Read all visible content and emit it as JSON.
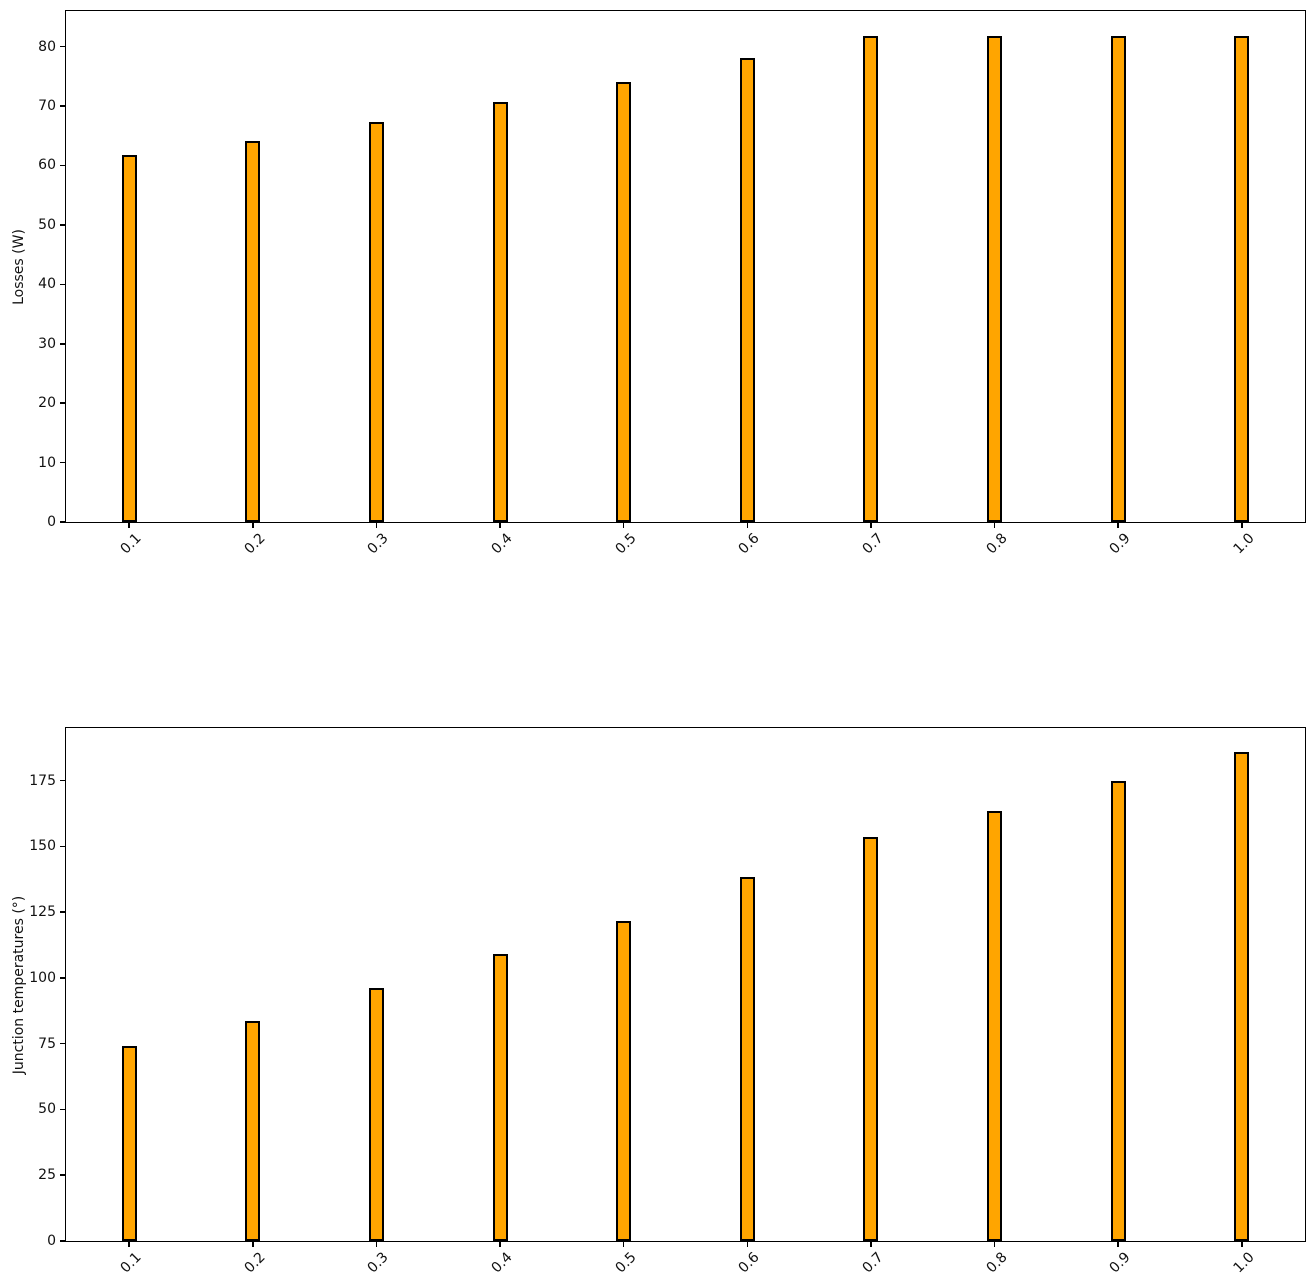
{
  "figure": {
    "background_color": "#ffffff",
    "bar_fill_color": "#FFA500",
    "bar_edge_color": "#000000",
    "axis_color": "#000000"
  },
  "chart_data": [
    {
      "type": "bar",
      "title": "",
      "xlabel": "",
      "ylabel": "Losses (W)",
      "categories": [
        "0.1",
        "0.2",
        "0.3",
        "0.4",
        "0.5",
        "0.6",
        "0.7",
        "0.8",
        "0.9",
        "1.0"
      ],
      "values": [
        61.7,
        64.2,
        67.3,
        70.7,
        74.1,
        78.1,
        81.8,
        81.8,
        81.8,
        81.8
      ],
      "yticks": [
        0,
        10,
        20,
        30,
        40,
        50,
        60,
        70,
        80
      ],
      "ylim": [
        0,
        86
      ],
      "grid": false,
      "legend": null,
      "x_tick_rotation_deg": 45,
      "bar_color": "#FFA500",
      "bar_edge_color": "#000000"
    },
    {
      "type": "bar",
      "title": "",
      "xlabel": "",
      "ylabel": "Junction temperatures (°)",
      "categories": [
        "0.1",
        "0.2",
        "0.3",
        "0.4",
        "0.5",
        "0.6",
        "0.7",
        "0.8",
        "0.9",
        "1.0"
      ],
      "values": [
        74.0,
        83.7,
        96.0,
        109.2,
        121.7,
        138.2,
        153.5,
        163.5,
        174.8,
        185.8
      ],
      "yticks": [
        0,
        25,
        50,
        75,
        100,
        125,
        150,
        175
      ],
      "ylim": [
        0,
        195
      ],
      "grid": false,
      "legend": null,
      "x_tick_rotation_deg": 45,
      "bar_color": "#FFA500",
      "bar_edge_color": "#000000"
    }
  ]
}
